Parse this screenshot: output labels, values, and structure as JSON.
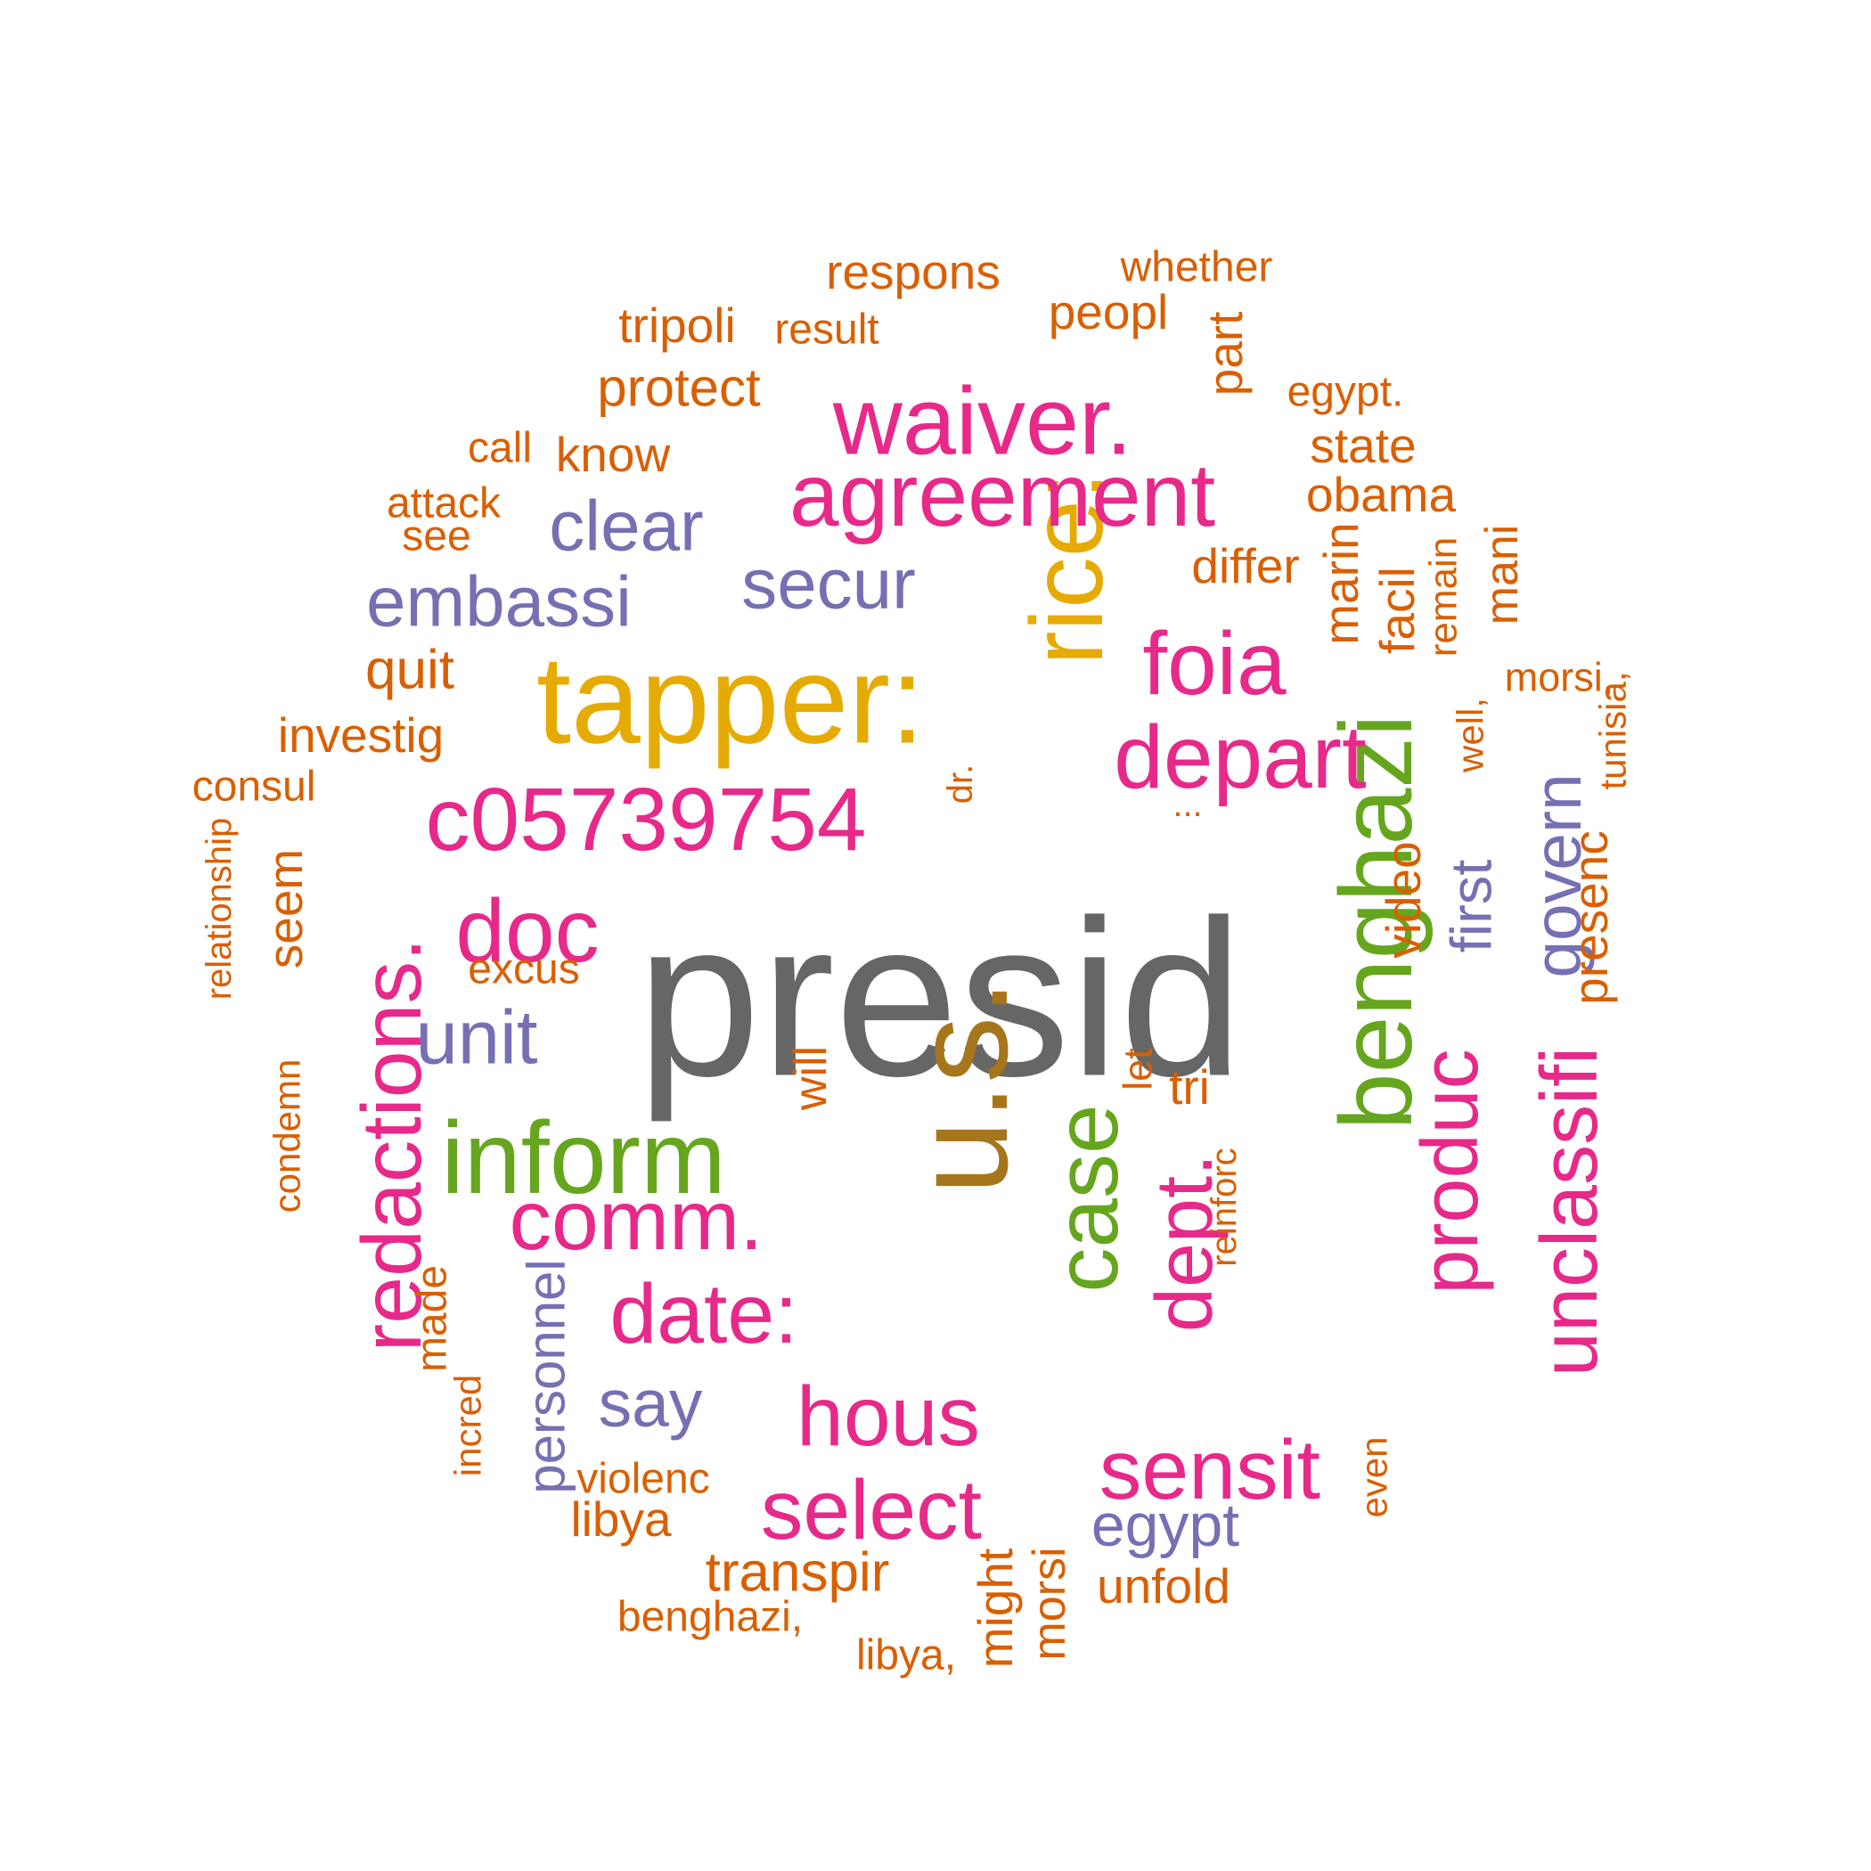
{
  "palette": {
    "c1": "#D95F02",
    "c2": "#7570B3",
    "c3": "#E7298A",
    "c4": "#66A61E",
    "c5": "#E6AB02",
    "c6": "#A6761D",
    "c7": "#666666"
  },
  "words": [
    {
      "text": "presid",
      "color": "c7"
    },
    {
      "text": "u.s.",
      "color": "c6"
    },
    {
      "text": "tapper:",
      "color": "c5"
    },
    {
      "text": "rice:",
      "color": "c5"
    },
    {
      "text": "benghazi",
      "color": "c4"
    },
    {
      "text": "inform",
      "color": "c4"
    },
    {
      "text": "case",
      "color": "c4"
    },
    {
      "text": "waiver.",
      "color": "c3"
    },
    {
      "text": "agreement",
      "color": "c3"
    },
    {
      "text": "foia",
      "color": "c3"
    },
    {
      "text": "depart",
      "color": "c3"
    },
    {
      "text": "c05739754",
      "color": "c3"
    },
    {
      "text": "redactions.",
      "color": "c3"
    },
    {
      "text": "doc",
      "color": "c3"
    },
    {
      "text": "comm.",
      "color": "c3"
    },
    {
      "text": "date:",
      "color": "c3"
    },
    {
      "text": "hous",
      "color": "c3"
    },
    {
      "text": "select",
      "color": "c3"
    },
    {
      "text": "sensit",
      "color": "c3"
    },
    {
      "text": "dept.",
      "color": "c3"
    },
    {
      "text": "produc",
      "color": "c3"
    },
    {
      "text": "unclassifi",
      "color": "c3"
    },
    {
      "text": "clear",
      "color": "c2"
    },
    {
      "text": "secur",
      "color": "c2"
    },
    {
      "text": "embassi",
      "color": "c2"
    },
    {
      "text": "unit",
      "color": "c2"
    },
    {
      "text": "say",
      "color": "c2"
    },
    {
      "text": "personnel",
      "color": "c2"
    },
    {
      "text": "egypt",
      "color": "c2"
    },
    {
      "text": "first",
      "color": "c2"
    },
    {
      "text": "govern",
      "color": "c2"
    },
    {
      "text": "respons",
      "color": "c1"
    },
    {
      "text": "whether",
      "color": "c1"
    },
    {
      "text": "tripoli",
      "color": "c1"
    },
    {
      "text": "result",
      "color": "c1"
    },
    {
      "text": "peopl",
      "color": "c1"
    },
    {
      "text": "part",
      "color": "c1"
    },
    {
      "text": "protect",
      "color": "c1"
    },
    {
      "text": "egypt.",
      "color": "c1"
    },
    {
      "text": "call",
      "color": "c1"
    },
    {
      "text": "know",
      "color": "c1"
    },
    {
      "text": "state",
      "color": "c1"
    },
    {
      "text": "attack",
      "color": "c1"
    },
    {
      "text": "obama",
      "color": "c1"
    },
    {
      "text": "see",
      "color": "c1"
    },
    {
      "text": "differ",
      "color": "c1"
    },
    {
      "text": "marin",
      "color": "c1"
    },
    {
      "text": "facil",
      "color": "c1"
    },
    {
      "text": "remain",
      "color": "c1"
    },
    {
      "text": "mani",
      "color": "c1"
    },
    {
      "text": "quit",
      "color": "c1"
    },
    {
      "text": "morsi,",
      "color": "c1"
    },
    {
      "text": "investig",
      "color": "c1"
    },
    {
      "text": "tunisia,",
      "color": "c1"
    },
    {
      "text": "consul",
      "color": "c1"
    },
    {
      "text": "well,",
      "color": "c1"
    },
    {
      "text": "dr.",
      "color": "c1"
    },
    {
      "text": "...",
      "color": "c1"
    },
    {
      "text": "relationship",
      "color": "c1"
    },
    {
      "text": "seem",
      "color": "c1"
    },
    {
      "text": "video",
      "color": "c1"
    },
    {
      "text": "presenc",
      "color": "c1"
    },
    {
      "text": "excus",
      "color": "c1"
    },
    {
      "text": "condemn",
      "color": "c1"
    },
    {
      "text": "let",
      "color": "c1"
    },
    {
      "text": "tri",
      "color": "c1"
    },
    {
      "text": "will",
      "color": "c1"
    },
    {
      "text": "reinforc",
      "color": "c1"
    },
    {
      "text": "made",
      "color": "c1"
    },
    {
      "text": "incred",
      "color": "c1"
    },
    {
      "text": "violenc",
      "color": "c1"
    },
    {
      "text": "libya",
      "color": "c1"
    },
    {
      "text": "transpir",
      "color": "c1"
    },
    {
      "text": "even",
      "color": "c1"
    },
    {
      "text": "unfold",
      "color": "c1"
    },
    {
      "text": "benghazi,",
      "color": "c1"
    },
    {
      "text": "might",
      "color": "c1"
    },
    {
      "text": "morsi",
      "color": "c1"
    },
    {
      "text": "libya,",
      "color": "c1"
    }
  ]
}
